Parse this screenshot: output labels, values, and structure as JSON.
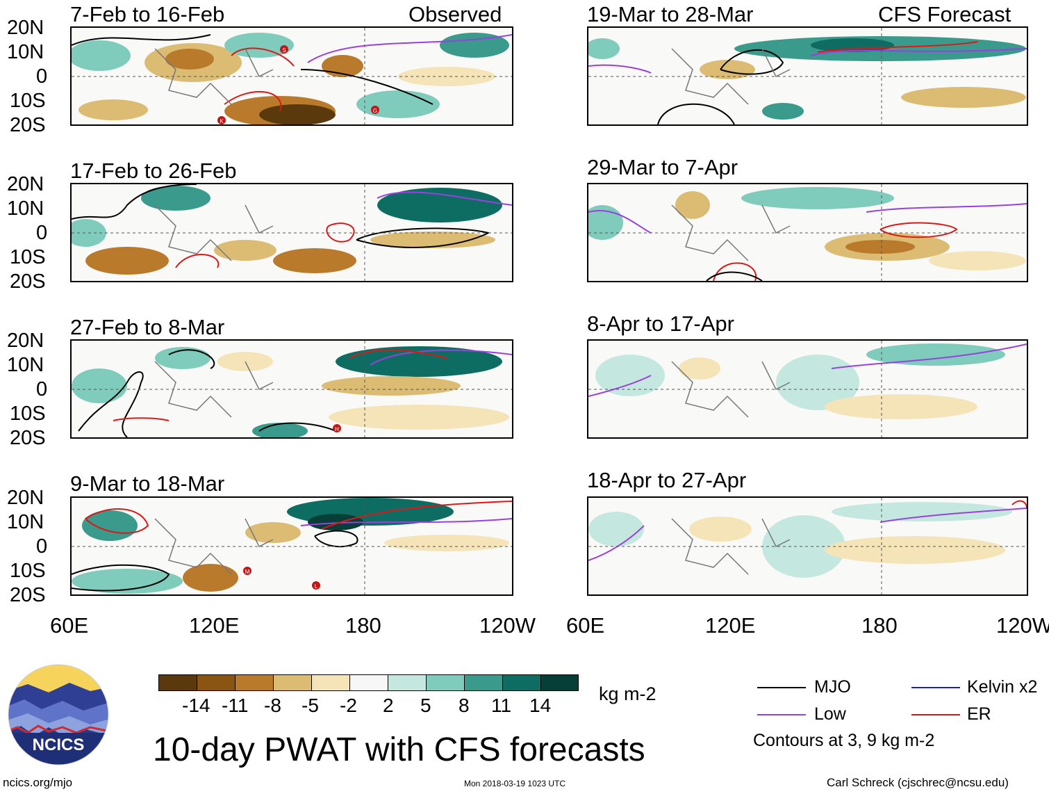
{
  "header": {
    "observed_label": "Observed",
    "forecast_label": "CFS Forecast"
  },
  "panels": {
    "observed": [
      {
        "period": "7-Feb to 16-Feb"
      },
      {
        "period": "17-Feb to 26-Feb"
      },
      {
        "period": "27-Feb to 8-Mar"
      },
      {
        "period": "9-Mar to 18-Mar"
      }
    ],
    "forecast": [
      {
        "period": "19-Mar to 28-Mar"
      },
      {
        "period": "29-Mar to 7-Apr"
      },
      {
        "period": "8-Apr to 17-Apr"
      },
      {
        "period": "18-Apr to 27-Apr"
      }
    ]
  },
  "lat_ticks": [
    "20N",
    "10N",
    "0",
    "10S",
    "20S"
  ],
  "lon_ticks": [
    "60E",
    "120E",
    "180",
    "120W"
  ],
  "storm_labels": {
    "p1": [
      "S",
      "K",
      "G"
    ],
    "p3": [
      "H"
    ],
    "p4": [
      "M",
      "L"
    ]
  },
  "colorbar": {
    "labels": [
      "-14",
      "-11",
      "-8",
      "-5",
      "-2",
      "2",
      "5",
      "8",
      "11",
      "14"
    ],
    "colors": [
      "#5a3a0c",
      "#8a5412",
      "#b97b2b",
      "#dcbb73",
      "#f5e4b8",
      "#f7f7f7",
      "#c4e8df",
      "#7fcbbc",
      "#3a9a8b",
      "#0e6d62",
      "#063f37"
    ],
    "units": "kg m-2"
  },
  "legend": {
    "items": [
      {
        "label": "MJO",
        "color": "#000000"
      },
      {
        "label": "Kelvin x2",
        "color": "#1a1adf"
      },
      {
        "label": "Low",
        "color": "#9a3fe0"
      },
      {
        "label": "ER",
        "color": "#e01616"
      }
    ],
    "contours_note": "Contours at 3, 9 kg m-2"
  },
  "footer": {
    "title": "10-day PWAT with CFS forecasts",
    "site": "ncics.org/mjo",
    "timestamp": "Mon 2018-03-19 1023 UTC",
    "author": "Carl Schreck (cjschrec@ncsu.edu)",
    "logo_text": "NCICS"
  }
}
